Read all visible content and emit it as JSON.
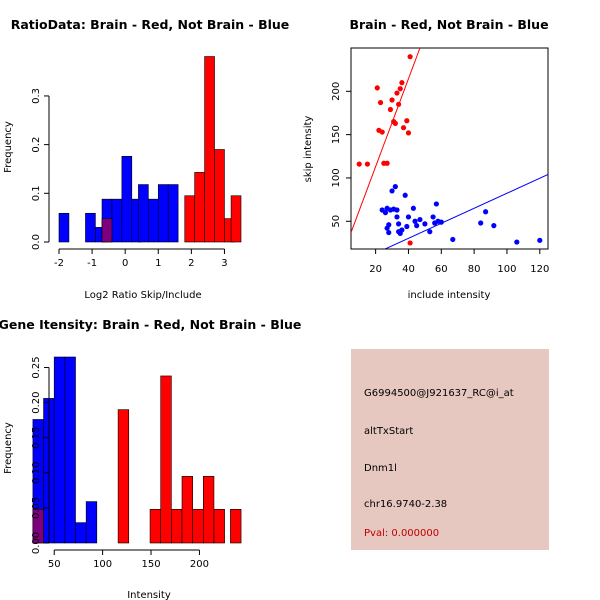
{
  "colors": {
    "brain": "#ff0000",
    "not_brain": "#0000ff",
    "overlap": "#7f007f",
    "info_bg": "#e6c8c0",
    "pval": "#c00000"
  },
  "chart_data": [
    {
      "id": "ratio_hist",
      "type": "bar",
      "title": "RatioData: Brain - Red, Not Brain - Blue",
      "xlabel": "Log2 Ratio Skip/Include",
      "ylabel": "Frequency",
      "xlim": [
        -2,
        3.5
      ],
      "ylim": [
        0,
        0.38
      ],
      "xticks": [
        -2,
        -1,
        0,
        1,
        2,
        3
      ],
      "yticks": [
        0.0,
        0.1,
        0.2,
        0.3
      ],
      "bin_width": 0.3,
      "series": [
        {
          "name": "Not Brain",
          "color": "blue",
          "bins": [
            [
              -2.0,
              0.059
            ],
            [
              -1.7,
              0.0
            ],
            [
              -1.4,
              0.0
            ],
            [
              -1.2,
              0.059
            ],
            [
              -0.9,
              0.03
            ],
            [
              -0.7,
              0.088
            ],
            [
              -0.4,
              0.088
            ],
            [
              -0.1,
              0.176
            ],
            [
              0.2,
              0.088
            ],
            [
              0.4,
              0.118
            ],
            [
              0.7,
              0.088
            ],
            [
              1.0,
              0.118
            ],
            [
              1.3,
              0.118
            ]
          ]
        },
        {
          "name": "Brain",
          "color": "red",
          "bins": [
            [
              -0.7,
              0.048
            ],
            [
              1.8,
              0.095
            ],
            [
              2.1,
              0.143
            ],
            [
              2.4,
              0.381
            ],
            [
              2.7,
              0.19
            ],
            [
              3.0,
              0.048
            ],
            [
              3.2,
              0.095
            ]
          ]
        }
      ]
    },
    {
      "id": "skip_scatter",
      "type": "scatter",
      "title": "Brain - Red, Not Brain - Blue",
      "xlabel": "include intensity",
      "ylabel": "skip intensity",
      "xlim": [
        5,
        125
      ],
      "ylim": [
        18,
        250
      ],
      "xticks": [
        20,
        40,
        60,
        80,
        100,
        120
      ],
      "yticks": [
        50,
        100,
        150,
        200
      ],
      "series": [
        {
          "name": "Brain",
          "color": "red",
          "points": [
            [
              10,
              116
            ],
            [
              15,
              116
            ],
            [
              21,
              204
            ],
            [
              22,
              155
            ],
            [
              23,
              187
            ],
            [
              24,
              153
            ],
            [
              25,
              117
            ],
            [
              27,
              117
            ],
            [
              29,
              179
            ],
            [
              30,
              190
            ],
            [
              31,
              165
            ],
            [
              32,
              163
            ],
            [
              33,
              198
            ],
            [
              34,
              185
            ],
            [
              35,
              203
            ],
            [
              36,
              210
            ],
            [
              37,
              158
            ],
            [
              39,
              166
            ],
            [
              40,
              152
            ],
            [
              41,
              25
            ],
            [
              41,
              240
            ]
          ],
          "fit": {
            "x": [
              5,
              47
            ],
            "y": [
              37,
              250
            ]
          }
        },
        {
          "name": "Not Brain",
          "color": "blue",
          "points": [
            [
              24,
              63
            ],
            [
              26,
              60
            ],
            [
              27,
              65
            ],
            [
              27,
              42
            ],
            [
              28,
              46
            ],
            [
              28,
              37
            ],
            [
              29,
              63
            ],
            [
              30,
              85
            ],
            [
              31,
              64
            ],
            [
              32,
              90
            ],
            [
              33,
              63
            ],
            [
              33,
              55
            ],
            [
              34,
              47
            ],
            [
              34,
              38
            ],
            [
              35,
              36
            ],
            [
              36,
              40
            ],
            [
              38,
              80
            ],
            [
              39,
              44
            ],
            [
              40,
              55
            ],
            [
              43,
              65
            ],
            [
              44,
              50
            ],
            [
              45,
              45
            ],
            [
              47,
              52
            ],
            [
              50,
              47
            ],
            [
              53,
              38
            ],
            [
              55,
              55
            ],
            [
              56,
              48
            ],
            [
              57,
              70
            ],
            [
              58,
              50
            ],
            [
              60,
              49
            ],
            [
              67,
              29
            ],
            [
              84,
              48
            ],
            [
              87,
              61
            ],
            [
              92,
              45
            ],
            [
              106,
              26
            ],
            [
              120,
              28
            ]
          ],
          "fit": {
            "x": [
              5,
              125
            ],
            "y": [
              0,
              104
            ]
          }
        }
      ]
    },
    {
      "id": "intensity_hist",
      "type": "bar",
      "title": "Gene Itensity: Brain - Red, Not Brain - Blue",
      "xlabel": "Intensity",
      "ylabel": "Frequency",
      "xlim": [
        25,
        245
      ],
      "ylim": [
        0,
        0.265
      ],
      "xticks": [
        50,
        100,
        150,
        200
      ],
      "yticks": [
        0.0,
        0.05,
        0.1,
        0.15,
        0.2,
        0.25
      ],
      "bin_width": 11,
      "series": [
        {
          "name": "Not Brain",
          "color": "blue",
          "bins": [
            [
              28,
              0.176
            ],
            [
              39,
              0.206
            ],
            [
              50,
              0.265
            ],
            [
              61,
              0.265
            ],
            [
              72,
              0.029
            ],
            [
              83,
              0.059
            ]
          ]
        },
        {
          "name": "Brain",
          "color": "red",
          "bins": [
            [
              28,
              0.048
            ],
            [
              116,
              0.19
            ],
            [
              149,
              0.048
            ],
            [
              160,
              0.238
            ],
            [
              171,
              0.048
            ],
            [
              182,
              0.095
            ],
            [
              193,
              0.048
            ],
            [
              204,
              0.095
            ],
            [
              215,
              0.048
            ],
            [
              232,
              0.048
            ]
          ]
        }
      ]
    }
  ],
  "info_panel": {
    "probe_id": "G6994500@J921637_RC@i_at",
    "event_type": "altTxStart",
    "gene_name": "Dnm1l",
    "location": "chr16.9740-2.38",
    "pval": "Pval: 0.000000"
  }
}
